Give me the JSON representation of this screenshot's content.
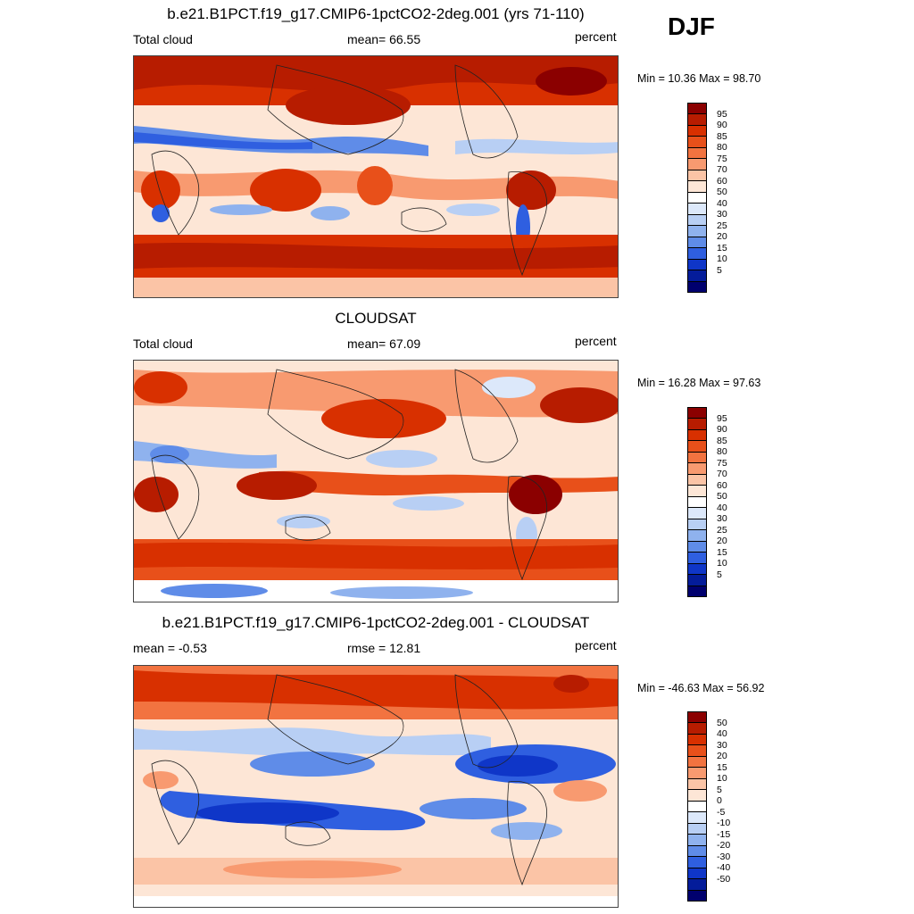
{
  "season": "DJF",
  "panels": [
    {
      "title": "b.e21.B1PCT.f19_g17.CMIP6-1pctCO2-2deg.001 (yrs 71-110)",
      "left": "Total cloud",
      "center": "mean=  66.55",
      "right": "percent",
      "minmax": "Min =  10.36 Max =  98.70"
    },
    {
      "title": "CLOUDSAT",
      "left": "Total cloud",
      "center": "mean=  67.09",
      "right": "percent",
      "minmax": "Min =  16.28 Max =  97.63"
    },
    {
      "title": "b.e21.B1PCT.f19_g17.CMIP6-1pctCO2-2deg.001 - CLOUDSAT",
      "left": "mean =  -0.53",
      "center": "rmse =  12.81",
      "right": "percent",
      "minmax": "Min = -46.63 Max =  56.92"
    }
  ],
  "colorbars": {
    "abs_labels": [
      "95",
      "90",
      "85",
      "80",
      "75",
      "70",
      "60",
      "50",
      "40",
      "30",
      "25",
      "20",
      "15",
      "10",
      "5"
    ],
    "diff_labels": [
      "50",
      "40",
      "30",
      "20",
      "15",
      "10",
      "5",
      "0",
      "-5",
      "-10",
      "-15",
      "-20",
      "-30",
      "-40",
      "-50"
    ],
    "colors": [
      "#8b0000",
      "#b71c00",
      "#d83000",
      "#e8501a",
      "#f27340",
      "#f89a70",
      "#fbc4a6",
      "#fde6d6",
      "#ffffff",
      "#dce8fa",
      "#b8cff4",
      "#8fb2ee",
      "#5f8ce8",
      "#2f5fe0",
      "#0f36c8",
      "#041c9a",
      "#00006e"
    ]
  },
  "chart_data": [
    {
      "type": "heatmap",
      "title": "b.e21.B1PCT.f19_g17.CMIP6-1pctCO2-2deg.001 (yrs 71-110)",
      "variable": "Total cloud",
      "units": "percent",
      "mean": 66.55,
      "min": 10.36,
      "max": 98.7,
      "levels": [
        5,
        10,
        15,
        20,
        25,
        30,
        40,
        50,
        60,
        70,
        75,
        80,
        85,
        90,
        95
      ]
    },
    {
      "type": "heatmap",
      "title": "CLOUDSAT",
      "variable": "Total cloud",
      "units": "percent",
      "mean": 67.09,
      "min": 16.28,
      "max": 97.63,
      "levels": [
        5,
        10,
        15,
        20,
        25,
        30,
        40,
        50,
        60,
        70,
        75,
        80,
        85,
        90,
        95
      ]
    },
    {
      "type": "heatmap",
      "title": "b.e21.B1PCT.f19_g17.CMIP6-1pctCO2-2deg.001 - CLOUDSAT",
      "units": "percent",
      "mean": -0.53,
      "rmse": 12.81,
      "min": -46.63,
      "max": 56.92,
      "levels": [
        -50,
        -40,
        -30,
        -20,
        -15,
        -10,
        -5,
        0,
        5,
        10,
        15,
        20,
        30,
        40,
        50
      ]
    }
  ]
}
